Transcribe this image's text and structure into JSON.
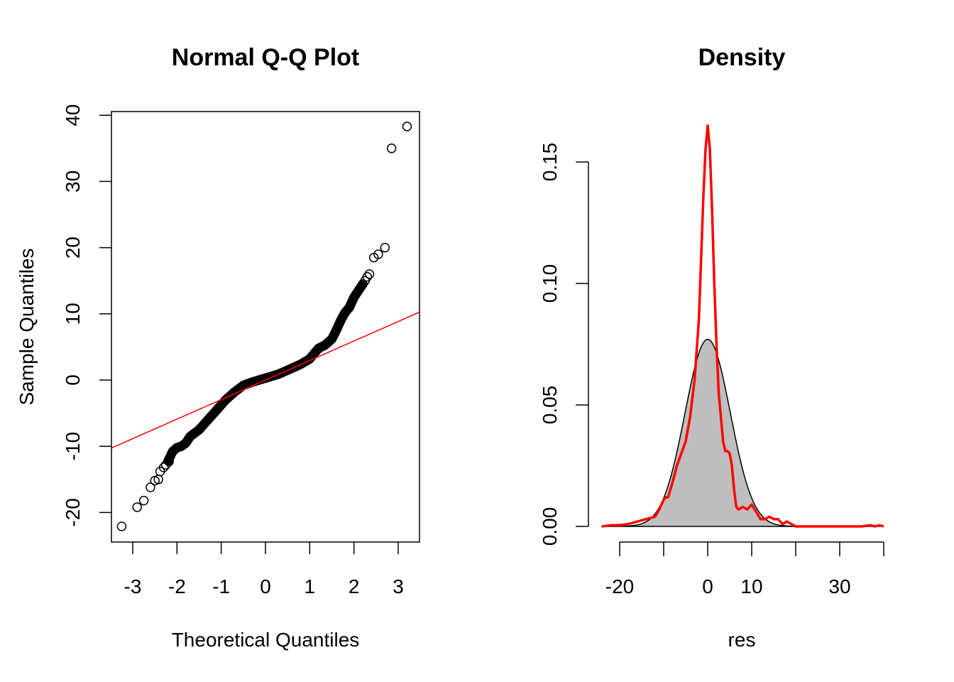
{
  "chart_data": [
    {
      "type": "scatter",
      "title": "Normal Q-Q Plot",
      "xlabel": "Theoretical Quantiles",
      "ylabel": "Sample Quantiles",
      "xlim": [
        -3.45,
        3.5
      ],
      "ylim": [
        -24.5,
        40.5
      ],
      "xticks": [
        -3,
        -2,
        -1,
        0,
        1,
        2,
        3
      ],
      "xtick_labels": [
        "-3",
        "-2",
        "-1",
        "0",
        "1",
        "2",
        "3"
      ],
      "yticks": [
        -20,
        -10,
        0,
        10,
        20,
        30,
        40
      ],
      "ytick_labels": [
        "-20",
        "-10",
        "0",
        "10",
        "20",
        "30",
        "40"
      ],
      "grid": false,
      "point_style": "open-circle",
      "point_color": "#000000",
      "reference_line": {
        "name": "qqline",
        "color": "#ff0000",
        "intercept": 0.0,
        "slope": 2.95
      },
      "curve_points": [
        [
          -3.25,
          -22.1
        ],
        [
          -2.9,
          -19.2
        ],
        [
          -2.75,
          -18.2
        ],
        [
          -2.6,
          -16.2
        ],
        [
          -2.5,
          -15.2
        ],
        [
          -2.45,
          -15.0
        ],
        [
          -2.38,
          -13.8
        ],
        [
          -2.32,
          -13.2
        ],
        [
          -2.25,
          -12.8
        ],
        [
          -2.2,
          -12.2
        ],
        [
          -2.15,
          -11.5
        ],
        [
          -2.1,
          -10.8
        ],
        [
          -2.05,
          -10.5
        ],
        [
          -2.0,
          -10.2
        ],
        [
          -1.9,
          -10.0
        ],
        [
          -1.8,
          -9.5
        ],
        [
          -1.7,
          -8.5
        ],
        [
          -1.5,
          -7.5
        ],
        [
          -1.3,
          -6.0
        ],
        [
          -1.1,
          -4.5
        ],
        [
          -0.9,
          -3.0
        ],
        [
          -0.7,
          -1.8
        ],
        [
          -0.5,
          -0.8
        ],
        [
          -0.3,
          -0.3
        ],
        [
          0.0,
          0.3
        ],
        [
          0.3,
          0.9
        ],
        [
          0.5,
          1.5
        ],
        [
          0.8,
          2.4
        ],
        [
          1.0,
          3.2
        ],
        [
          1.1,
          4.0
        ],
        [
          1.2,
          4.8
        ],
        [
          1.35,
          5.3
        ],
        [
          1.5,
          6.2
        ],
        [
          1.6,
          7.5
        ],
        [
          1.7,
          9.0
        ],
        [
          1.8,
          10.2
        ],
        [
          1.9,
          11.0
        ],
        [
          2.0,
          12.5
        ],
        [
          2.1,
          13.5
        ],
        [
          2.2,
          14.5
        ],
        [
          2.3,
          15.5
        ],
        [
          2.4,
          16.0
        ],
        [
          2.45,
          18.5
        ],
        [
          2.55,
          19.0
        ],
        [
          2.7,
          20.0
        ],
        [
          2.85,
          35.0
        ],
        [
          3.2,
          38.3
        ]
      ],
      "open_points": [
        [
          -3.25,
          -22.1
        ],
        [
          -2.9,
          -19.2
        ],
        [
          -2.75,
          -18.2
        ],
        [
          -2.6,
          -16.2
        ],
        [
          -2.5,
          -15.2
        ],
        [
          -2.42,
          -15.0
        ],
        [
          -2.38,
          -13.8
        ],
        [
          -2.3,
          -13.2
        ],
        [
          -2.25,
          -12.8
        ],
        [
          -2.18,
          -12.3
        ],
        [
          2.2,
          14.5
        ],
        [
          2.25,
          15.0
        ],
        [
          2.3,
          15.6
        ],
        [
          2.35,
          16.0
        ],
        [
          2.45,
          18.5
        ],
        [
          2.55,
          19.0
        ],
        [
          2.7,
          20.0
        ],
        [
          2.85,
          35.0
        ],
        [
          3.2,
          38.3
        ]
      ]
    },
    {
      "type": "area",
      "title": "Density",
      "xlabel": "res",
      "ylabel": "",
      "xlim": [
        -24,
        40
      ],
      "ylim": [
        0,
        0.165
      ],
      "xticks": [
        -20,
        -10,
        0,
        10,
        20,
        30,
        40
      ],
      "xtick_labels_shown": [
        "-20",
        "0",
        "10",
        "30"
      ],
      "yticks": [
        0.0,
        0.05,
        0.1,
        0.15
      ],
      "ytick_labels": [
        "0.00",
        "0.05",
        "0.10",
        "0.15"
      ],
      "grid": false,
      "series": [
        {
          "name": "normal density",
          "kind": "filled-area",
          "fill": "#bebebe",
          "stroke": "#000000",
          "mean": 0.0,
          "sd": 5.15,
          "peak": 0.077
        },
        {
          "name": "kernel density",
          "kind": "line",
          "stroke": "#ff0000",
          "x": [
            -24,
            -22,
            -20,
            -18,
            -16,
            -14,
            -12,
            -11,
            -10,
            -9.5,
            -9,
            -8,
            -7,
            -6,
            -5,
            -4,
            -3,
            -2,
            -1.5,
            -1,
            -0.5,
            0,
            0.5,
            1,
            1.5,
            2,
            2.5,
            3,
            3.5,
            4,
            4.5,
            5,
            5.5,
            6,
            6.5,
            7,
            8,
            9,
            10,
            11,
            12,
            13,
            14,
            15,
            16,
            17,
            18,
            19,
            20,
            22,
            25,
            30,
            35,
            37,
            38,
            39,
            40
          ],
          "y": [
            0.0,
            0.0005,
            0.0005,
            0.001,
            0.002,
            0.003,
            0.004,
            0.007,
            0.011,
            0.012,
            0.012,
            0.018,
            0.025,
            0.03,
            0.035,
            0.045,
            0.06,
            0.085,
            0.11,
            0.135,
            0.155,
            0.165,
            0.155,
            0.13,
            0.1,
            0.075,
            0.055,
            0.045,
            0.035,
            0.031,
            0.031,
            0.03,
            0.025,
            0.015,
            0.008,
            0.007,
            0.008,
            0.007,
            0.009,
            0.006,
            0.003,
            0.003,
            0.004,
            0.003,
            0.003,
            0.001,
            0.002,
            0.001,
            0.0,
            0.0,
            0.0,
            0.0,
            0.0,
            0.0005,
            0.0,
            0.0005,
            0.0
          ]
        }
      ]
    }
  ]
}
